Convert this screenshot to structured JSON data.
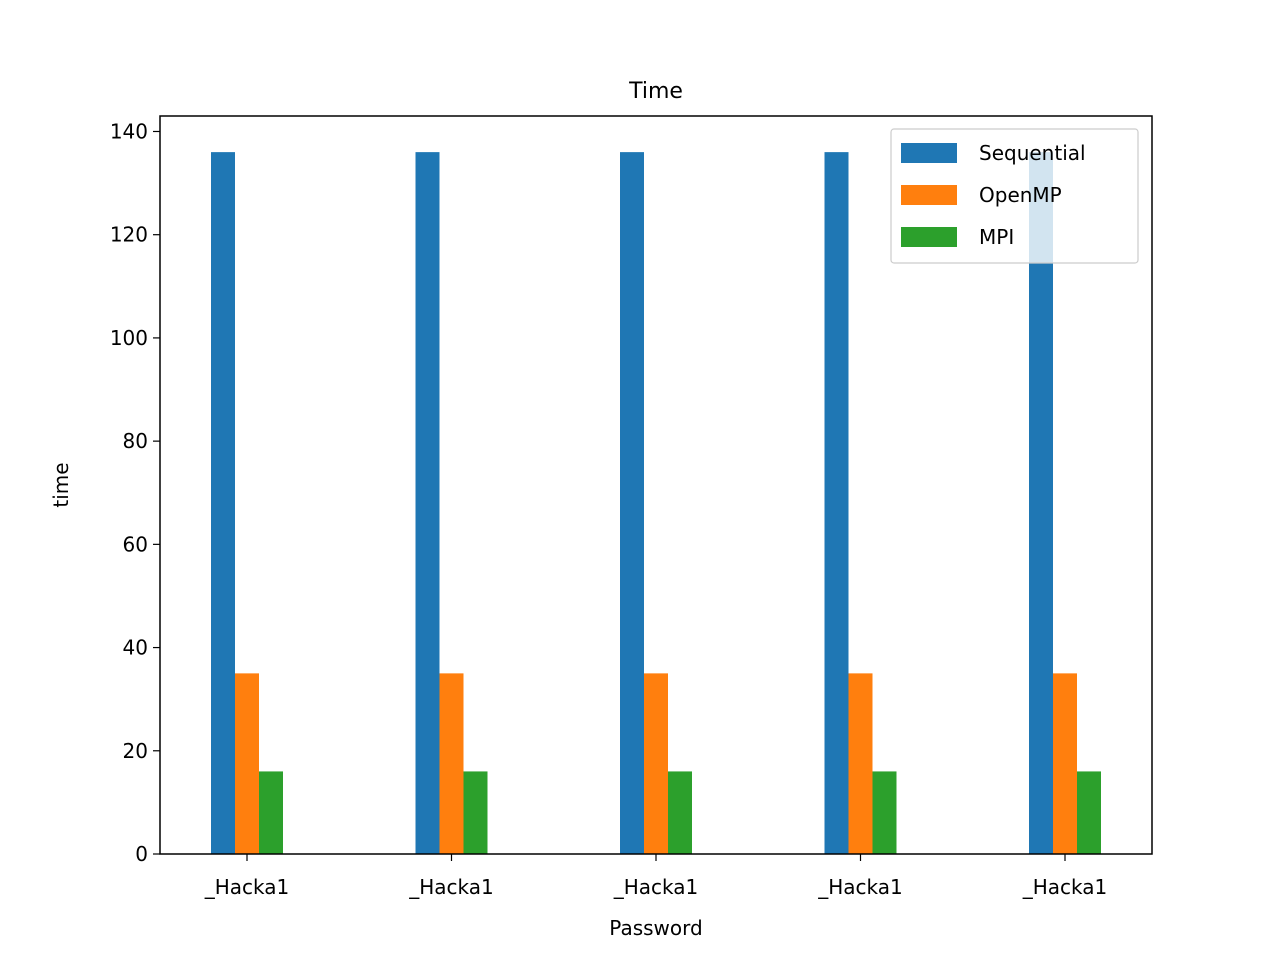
{
  "chart_data": {
    "type": "bar",
    "title": "Time",
    "xlabel": "Password",
    "ylabel": "time",
    "categories": [
      "_Hacka1",
      "_Hacka1",
      "_Hacka1",
      "_Hacka1",
      "_Hacka1"
    ],
    "series": [
      {
        "name": "Sequential",
        "color": "#1f77b4",
        "values": [
          136,
          136,
          136,
          136,
          136
        ]
      },
      {
        "name": "OpenMP",
        "color": "#ff7f0e",
        "values": [
          35,
          35,
          35,
          35,
          35
        ]
      },
      {
        "name": "MPI",
        "color": "#2ca02c",
        "values": [
          16,
          16,
          16,
          16,
          16
        ]
      }
    ],
    "ylim": [
      0,
      143
    ],
    "yticks": [
      0,
      20,
      40,
      60,
      80,
      100,
      120,
      140
    ],
    "grid": false,
    "legend": {
      "position": "top-right",
      "entries": [
        "Sequential",
        "OpenMP",
        "MPI"
      ]
    }
  }
}
